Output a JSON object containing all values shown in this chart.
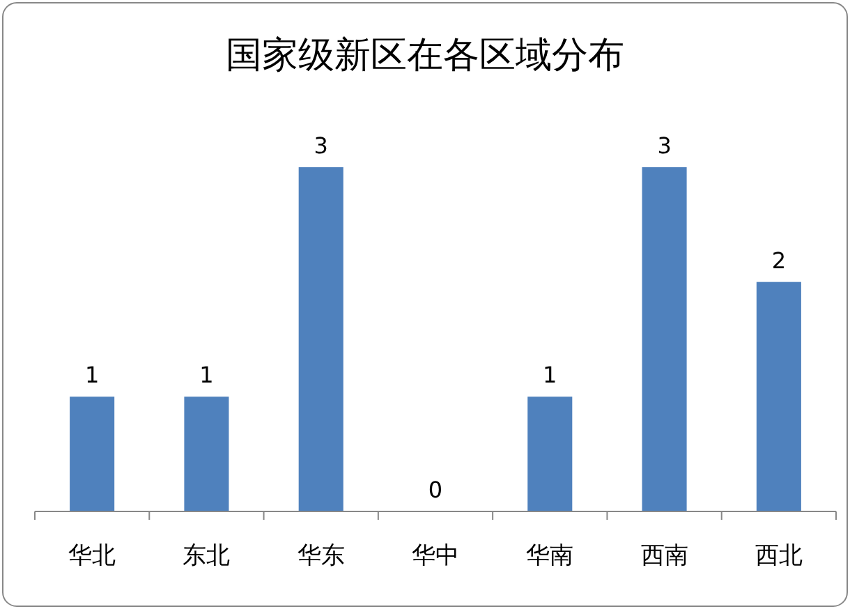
{
  "chart_data": {
    "type": "bar",
    "title": "国家级新区在各区域分布",
    "categories": [
      "华北",
      "东北",
      "华东",
      "华中",
      "华南",
      "西南",
      "西北"
    ],
    "values": [
      1,
      1,
      3,
      0,
      1,
      3,
      2
    ],
    "color": "#4f81bd",
    "data_labels": true
  }
}
